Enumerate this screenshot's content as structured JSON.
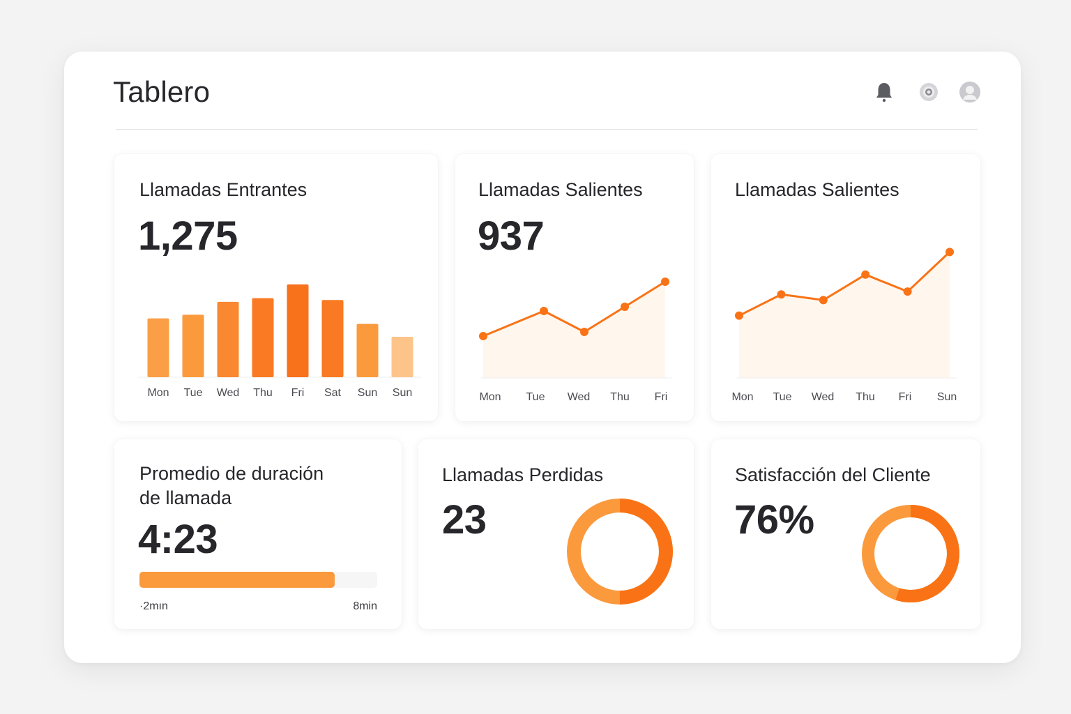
{
  "header": {
    "title": "Tablero",
    "icons": [
      "bell-icon",
      "settings-icon",
      "user-avatar-icon"
    ]
  },
  "colors": {
    "accent": "#f97316",
    "accent_light": "#fb9a3d",
    "accent_pale": "#fdc48a",
    "area_fill": "#fff7ee",
    "text": "#26262b"
  },
  "cards": {
    "incoming": {
      "title": "Llamadas Entrantes",
      "value": "1,275"
    },
    "outgoing": {
      "title": "Llamadas Salientes",
      "value": "937"
    },
    "outgoing_trend": {
      "title": "Llamadas Salientes"
    },
    "avg_duration": {
      "title_line1": "Promedio de duración",
      "title_line2": "de llamada",
      "value": "4:23",
      "progress": 0.82,
      "range_min": "·2mın",
      "range_max": "8min"
    },
    "missed": {
      "title": "Llamadas Perdidas",
      "value": "23",
      "donut_fraction": 0.5
    },
    "satisfaction": {
      "title": "Satisfacción del Cliente",
      "value": "76%",
      "donut_fraction": 0.55
    }
  },
  "chart_data": [
    {
      "type": "bar",
      "title": "Llamadas Entrantes",
      "categories": [
        "Mon",
        "Tue",
        "Wed",
        "Thu",
        "Fri",
        "Sat",
        "Sun",
        "Sun"
      ],
      "values": [
        64,
        68,
        82,
        86,
        101,
        84,
        58,
        44
      ],
      "ylim": [
        0,
        110
      ]
    },
    {
      "type": "line",
      "title": "Llamadas Salientes",
      "categories": [
        "Mon",
        "Tue",
        "Wed",
        "Thu",
        "Fri"
      ],
      "x": [
        0,
        1.5,
        2.5,
        3.5,
        4.5
      ],
      "values": [
        30,
        48,
        33,
        51,
        69
      ],
      "xlim": [
        0,
        4.5
      ],
      "ylim": [
        0,
        90
      ]
    },
    {
      "type": "line",
      "title": "Llamadas Salientes",
      "categories": [
        "Mon",
        "Tue",
        "Wed",
        "Thu",
        "Fri",
        "Sun"
      ],
      "x": [
        0,
        1.1,
        2.2,
        3.3,
        4.4,
        5.5
      ],
      "values": [
        44,
        59,
        55,
        73,
        61,
        89
      ],
      "xlim": [
        0,
        5.5
      ],
      "ylim": [
        0,
        100
      ]
    }
  ]
}
